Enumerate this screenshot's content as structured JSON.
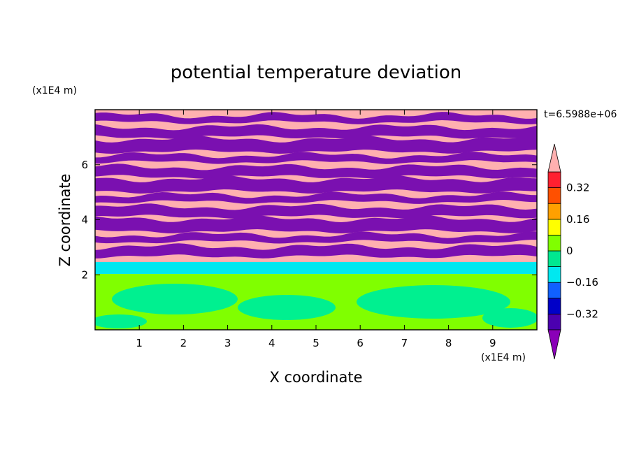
{
  "chart_data": {
    "type": "heatmap",
    "title": "potential temperature deviation",
    "xlabel": "X coordinate",
    "ylabel": "Z coordinate",
    "x_unit": "(x1E4 m)",
    "y_unit": "(x1E4 m)",
    "time_label": "t=6.5988e+06",
    "xlim": [
      0,
      10
    ],
    "ylim": [
      0,
      8
    ],
    "x_ticks": [
      1,
      2,
      3,
      4,
      5,
      6,
      7,
      8,
      9
    ],
    "y_ticks": [
      2,
      4,
      6
    ],
    "x_tick_labels": [
      "1",
      "2",
      "3",
      "4",
      "5",
      "6",
      "7",
      "8",
      "9"
    ],
    "y_tick_labels": [
      "2",
      "4",
      "6"
    ],
    "grid": false,
    "colorbar": {
      "levels": [
        -0.4,
        -0.32,
        -0.24,
        -0.16,
        -0.08,
        0,
        0.08,
        0.16,
        0.24,
        0.32,
        0.4
      ],
      "tick_values": [
        0.32,
        0.16,
        0,
        -0.16,
        -0.32
      ],
      "tick_labels": [
        "0.32",
        "0.16",
        "0",
        "−0.16",
        "−0.32"
      ],
      "colors_low_to_high": [
        "#8a00b8",
        "#4b00b0",
        "#0000c8",
        "#1060ff",
        "#00e8f0",
        "#00e890",
        "#80ff00",
        "#ffff00",
        "#ffa000",
        "#ff5000",
        "#ff2030",
        "#ffb0b0"
      ],
      "extend": "both"
    },
    "field_colors": {
      "upper_stripes": [
        "#ffb0b0",
        "#7a10b0"
      ],
      "mid_band": "#00e8f0",
      "lower_region": [
        "#80ff00",
        "#00f090"
      ]
    }
  }
}
